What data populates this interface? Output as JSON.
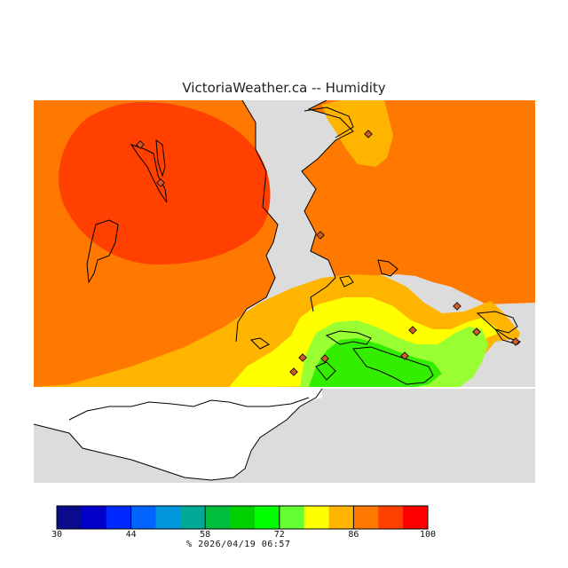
{
  "title": "VictoriaWeather.ca -- Humidity",
  "colors": {
    "map_background": "#dcdcdc",
    "land_uncovered": "#ffffff",
    "coastline": "#000000",
    "station_marker": "#cc5a2a",
    "zone_very_high": "#ff4000",
    "zone_high": "#ff7800",
    "zone_mid_high": "#ffb400",
    "zone_mid": "#ffff00",
    "zone_low_mid": "#99ff33",
    "zone_low": "#33ee00"
  },
  "legend": {
    "unit": "%",
    "timestamp": "2026/04/19 06:57",
    "min": 30,
    "max": 100,
    "tick_labels": [
      "30",
      "44",
      "58",
      "72",
      "86",
      "100"
    ],
    "colors": [
      "#0a0a8c",
      "#0000c8",
      "#0028ff",
      "#0064ff",
      "#0096dc",
      "#00aa96",
      "#00be3c",
      "#00d200",
      "#00ff00",
      "#64ff32",
      "#ffff00",
      "#ffb400",
      "#ff7800",
      "#ff4000",
      "#ff0000"
    ]
  }
}
